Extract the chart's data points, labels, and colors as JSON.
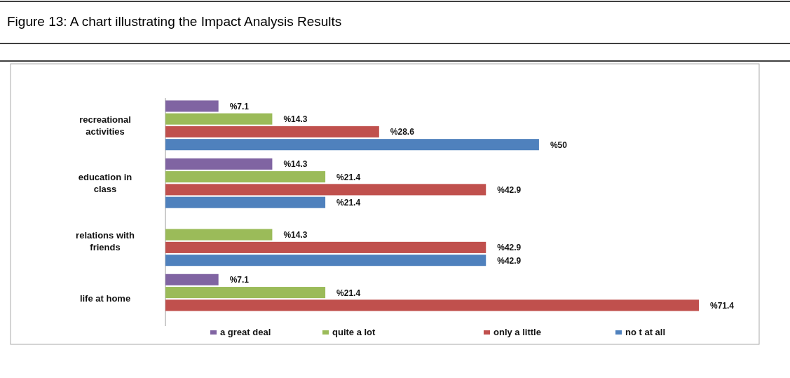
{
  "chart_data": {
    "type": "bar",
    "orientation": "horizontal",
    "title": "Figure 13: A chart illustrating the Impact Analysis Results",
    "categories": [
      "recreational activities",
      "education in class",
      "relations with friends",
      "life at home"
    ],
    "series": [
      {
        "name": "a great deal",
        "color": "#8064a2",
        "values": [
          7.1,
          14.3,
          null,
          7.1
        ],
        "value_labels": [
          "%7.1",
          "%14.3",
          null,
          "%7.1"
        ]
      },
      {
        "name": "quite a lot",
        "color": "#9bbb59",
        "values": [
          14.3,
          21.4,
          14.3,
          21.4
        ],
        "value_labels": [
          "%14.3",
          "%21.4",
          "%14.3",
          "%21.4"
        ]
      },
      {
        "name": "only a little",
        "color": "#c0504d",
        "values": [
          28.6,
          42.9,
          42.9,
          71.4
        ],
        "value_labels": [
          "%28.6",
          "%42.9",
          "%42.9",
          "%71.4"
        ]
      },
      {
        "name": "no t at all",
        "color": "#4f81bd",
        "values": [
          50,
          21.4,
          42.9,
          null
        ],
        "value_labels": [
          "%50",
          "%21.4",
          "%42.9",
          null
        ]
      }
    ],
    "legend": "bottom"
  }
}
